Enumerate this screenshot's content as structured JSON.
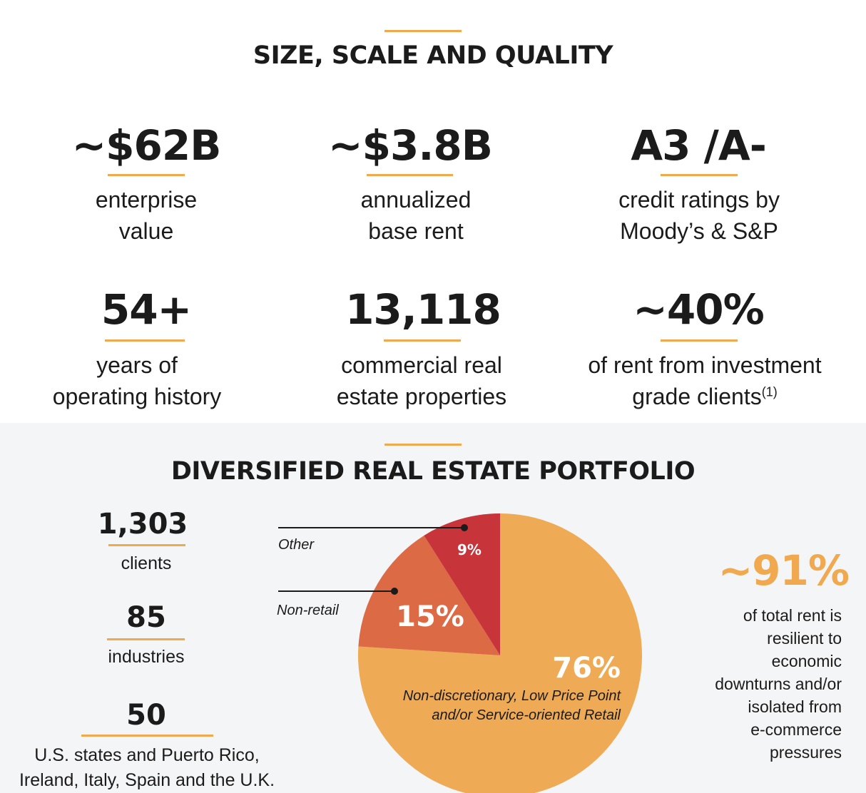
{
  "size_scale": {
    "title": "SIZE, SCALE AND QUALITY",
    "stats": [
      {
        "value": "~$62B",
        "line1": "enterprise",
        "line2": "value"
      },
      {
        "value": "~$3.8B",
        "line1": "annualized",
        "line2": "base rent"
      },
      {
        "value": "A3 /A-",
        "line1": "credit ratings by",
        "line2": "Moody’s & S&P"
      },
      {
        "value": "54+",
        "line1": "years of",
        "line2": "operating history"
      },
      {
        "value": "13,118",
        "line1": "commercial real",
        "line2": "estate properties"
      },
      {
        "value": "~40%",
        "line1": "of rent from investment",
        "line2": "grade clients",
        "footnote": "(1)"
      }
    ]
  },
  "portfolio": {
    "title": "DIVERSIFIED REAL ESTATE PORTFOLIO",
    "side_stats": [
      {
        "value": "1,303",
        "label": "clients"
      },
      {
        "value": "85",
        "label": "industries"
      },
      {
        "value": "50",
        "label_line1": "U.S. states and Puerto Rico,",
        "label_line2": "Ireland, Italy, Spain and the U.K."
      }
    ],
    "resilient": {
      "value": "~91%",
      "lines": [
        "of total rent is",
        "resilient to",
        "economic",
        "downturns and/or",
        "isolated from",
        "e-commerce",
        "pressures"
      ]
    }
  },
  "colors": {
    "accent": "#f0a94e",
    "retail": "#eeaa55",
    "nonretail": "#dc6a45",
    "other": "#c7343a"
  },
  "chart_data": {
    "type": "pie",
    "title": "",
    "slices": [
      {
        "label": "Non-discretionary, Low Price Point and/or Service-oriented Retail",
        "value": 76,
        "display": "76%",
        "color": "#eeaa55"
      },
      {
        "label": "Non-retail",
        "value": 15,
        "display": "15%",
        "color": "#dc6a45"
      },
      {
        "label": "Other",
        "value": 9,
        "display": "9%",
        "color": "#c7343a"
      }
    ],
    "retail_label_line1": "Non-discretionary, Low Price Point",
    "retail_label_line2": "and/or Service-oriented Retail"
  }
}
